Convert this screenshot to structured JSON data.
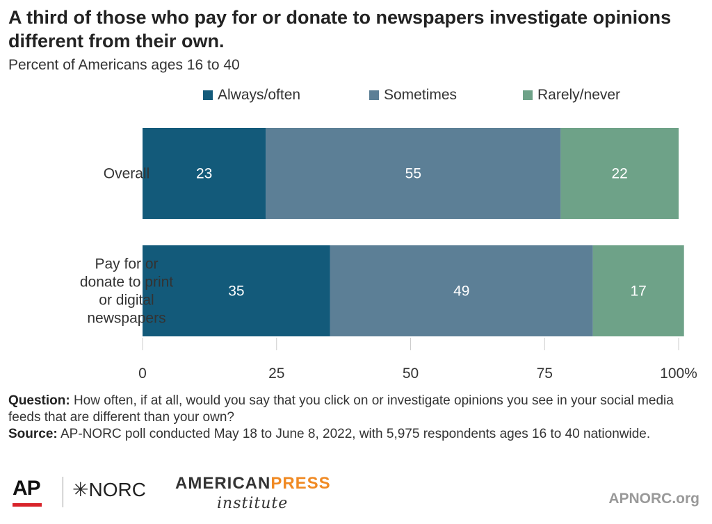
{
  "header": {
    "title": "A third of those who pay for or donate to newspapers investigate opinions different from their own.",
    "subtitle": "Percent of Americans ages 16 to 40"
  },
  "chart_data": {
    "type": "bar",
    "orientation": "horizontal",
    "stacked": true,
    "categories": [
      "Overall",
      "Pay for or donate to print or digital newspapers"
    ],
    "series": [
      {
        "name": "Always/often",
        "values": [
          23,
          35
        ],
        "color": "#135a7a"
      },
      {
        "name": "Sometimes",
        "values": [
          55,
          49
        ],
        "color": "#5c7f96"
      },
      {
        "name": "Rarely/never",
        "values": [
          22,
          17
        ],
        "color": "#6ea288"
      }
    ],
    "xlim": [
      0,
      100
    ],
    "xticks": [
      "0",
      "25",
      "50",
      "75",
      "100%"
    ],
    "xtick_values": [
      0,
      25,
      50,
      75,
      100
    ],
    "legend": "top",
    "grid": false
  },
  "notes": {
    "question_label": "Question:",
    "question_text": "How often, if at all, would you say that you click on or investigate opinions you see in your social media feeds that are different than your own?",
    "source_label": "Source:",
    "source_text": "AP-NORC poll conducted May 18 to June 8, 2022, with 5,975 respondents ages 16 to 40 nationwide."
  },
  "footer": {
    "logo_ap": "AP",
    "logo_norc": "NORC",
    "logo_api_american": "AMERICAN",
    "logo_api_press": "PRESS",
    "logo_api_institute": "institute",
    "site": "APNORC.org"
  }
}
